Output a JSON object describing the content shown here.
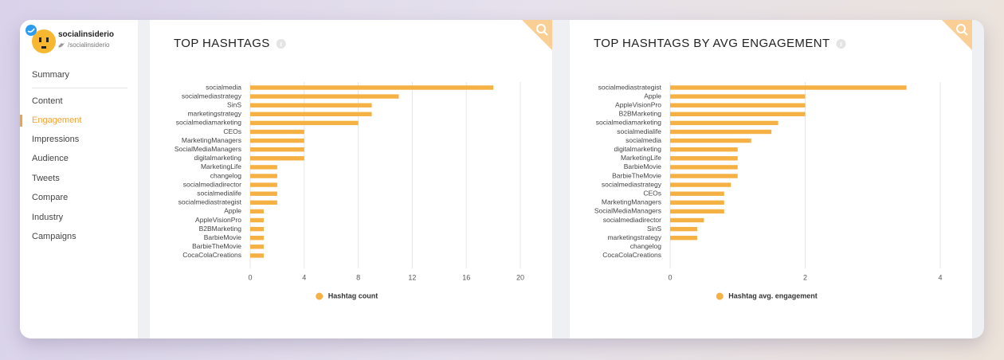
{
  "sidebar": {
    "name": "socialinsiderio",
    "handle": "/socialinsiderio",
    "menu": [
      "Summary",
      "Content",
      "Engagement",
      "Impressions",
      "Audience",
      "Tweets",
      "Compare",
      "Industry",
      "Campaigns"
    ]
  },
  "chart_data": [
    {
      "type": "hbar",
      "title": "TOP HASHTAGS",
      "categories": [
        "socialmedia",
        "socialmediastrategy",
        "SinS",
        "marketingstrategy",
        "socialmediamarketing",
        "CEOs",
        "MarketingManagers",
        "SocialMediaManagers",
        "digitalmarketing",
        "MarketingLife",
        "changelog",
        "socialmediadirector",
        "socialmedialife",
        "socialmediastrategist",
        "Apple",
        "AppleVisionPro",
        "B2BMarketing",
        "BarbieMovie",
        "BarbieTheMovie",
        "CocaColaCreations"
      ],
      "series": [
        {
          "name": "Hashtag count",
          "color": "#f6b144",
          "values": [
            18,
            11,
            9,
            9,
            8,
            4,
            4,
            4,
            4,
            2,
            2,
            2,
            2,
            2,
            1,
            1,
            1,
            1,
            1,
            1
          ]
        }
      ],
      "xlim": [
        0,
        20
      ],
      "xticks": [
        0,
        4,
        8,
        12,
        16,
        20
      ],
      "grid": true
    },
    {
      "type": "hbar",
      "title": "TOP HASHTAGS BY AVG ENGAGEMENT",
      "categories": [
        "socialmediastrategist",
        "Apple",
        "AppleVisionPro",
        "B2BMarketing",
        "socialmediamarketing",
        "socialmedialife",
        "socialmedia",
        "digitalmarketing",
        "MarketingLife",
        "BarbieMovie",
        "BarbieTheMovie",
        "socialmediastrategy",
        "CEOs",
        "MarketingManagers",
        "SocialMediaManagers",
        "socialmediadirector",
        "SinS",
        "marketingstrategy",
        "changelog",
        "CocaColaCreations"
      ],
      "series": [
        {
          "name": "Hashtag avg. engagement",
          "color": "#f6b144",
          "values": [
            3.5,
            2,
            2,
            2,
            1.6,
            1.5,
            1.2,
            1,
            1,
            1,
            1,
            0.9,
            0.8,
            0.8,
            0.8,
            0.5,
            0.4,
            0.4,
            0,
            0
          ]
        }
      ],
      "xlim": [
        0,
        4
      ],
      "xticks": [
        0,
        2,
        4
      ],
      "grid": true
    }
  ]
}
